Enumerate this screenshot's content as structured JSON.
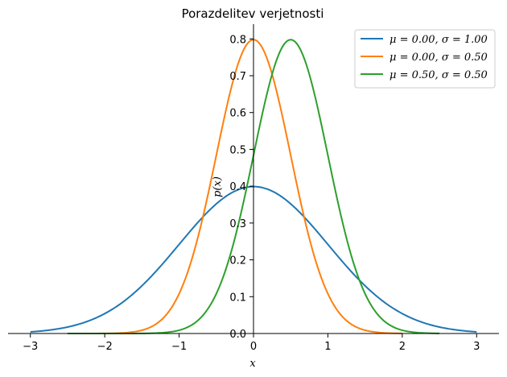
{
  "chart_data": {
    "type": "line",
    "title": "Porazdelitev verjetnosti",
    "xlabel": "x",
    "ylabel": "p(x)",
    "xlim": [
      -3.3,
      3.3
    ],
    "ylim": [
      0,
      0.84
    ],
    "x_ticks": [
      -3,
      -2,
      -1,
      0,
      1,
      2,
      3
    ],
    "x_tick_labels": [
      "−3",
      "−2",
      "−1",
      "0",
      "1",
      "2",
      "3"
    ],
    "y_ticks": [
      0.0,
      0.1,
      0.2,
      0.3,
      0.4,
      0.5,
      0.6,
      0.7,
      0.8
    ],
    "y_tick_labels": [
      "0.0",
      "0.1",
      "0.2",
      "0.3",
      "0.4",
      "0.5",
      "0.6",
      "0.7",
      "0.8"
    ],
    "grid": false,
    "legend_position": "top-right",
    "series": [
      {
        "name": "μ = 0.00, σ = 1.00",
        "mu": 0.0,
        "sigma": 1.0,
        "x_range": [
          -3,
          3
        ],
        "color": "#1f77b4",
        "x": [
          -3,
          -2.5,
          -2,
          -1.5,
          -1,
          -0.5,
          0,
          0.5,
          1,
          1.5,
          2,
          2.5,
          3
        ],
        "y": [
          0.0044,
          0.0175,
          0.054,
          0.1295,
          0.242,
          0.3521,
          0.3989,
          0.3521,
          0.242,
          0.1295,
          0.054,
          0.0175,
          0.0044
        ]
      },
      {
        "name": "μ = 0.00, σ = 0.50",
        "mu": 0.0,
        "sigma": 0.5,
        "x_range": [
          -2.5,
          2
        ],
        "color": "#ff7f0e",
        "x": [
          -2.5,
          -2,
          -1.5,
          -1,
          -0.5,
          0,
          0.5,
          1,
          1.5,
          2
        ],
        "y": [
          0.0,
          0.0003,
          0.0089,
          0.108,
          0.4839,
          0.7979,
          0.4839,
          0.108,
          0.0089,
          0.0003
        ]
      },
      {
        "name": "μ = 0.50, σ = 0.50",
        "mu": 0.5,
        "sigma": 0.5,
        "x_range": [
          -2.5,
          2.5
        ],
        "color": "#2ca02c",
        "x": [
          -2.5,
          -2,
          -1.5,
          -1,
          -0.5,
          0,
          0.5,
          1,
          1.5,
          2,
          2.5
        ],
        "y": [
          0.0,
          0.0,
          0.0003,
          0.0089,
          0.108,
          0.4839,
          0.7979,
          0.4839,
          0.108,
          0.0089,
          0.0003
        ]
      }
    ],
    "legend": [
      {
        "mu_label": "μ = 0.00",
        "sigma_label": "σ = 1.00"
      },
      {
        "mu_label": "μ = 0.00",
        "sigma_label": "σ = 0.50"
      },
      {
        "mu_label": "μ = 0.50",
        "sigma_label": "σ = 0.50"
      }
    ]
  }
}
